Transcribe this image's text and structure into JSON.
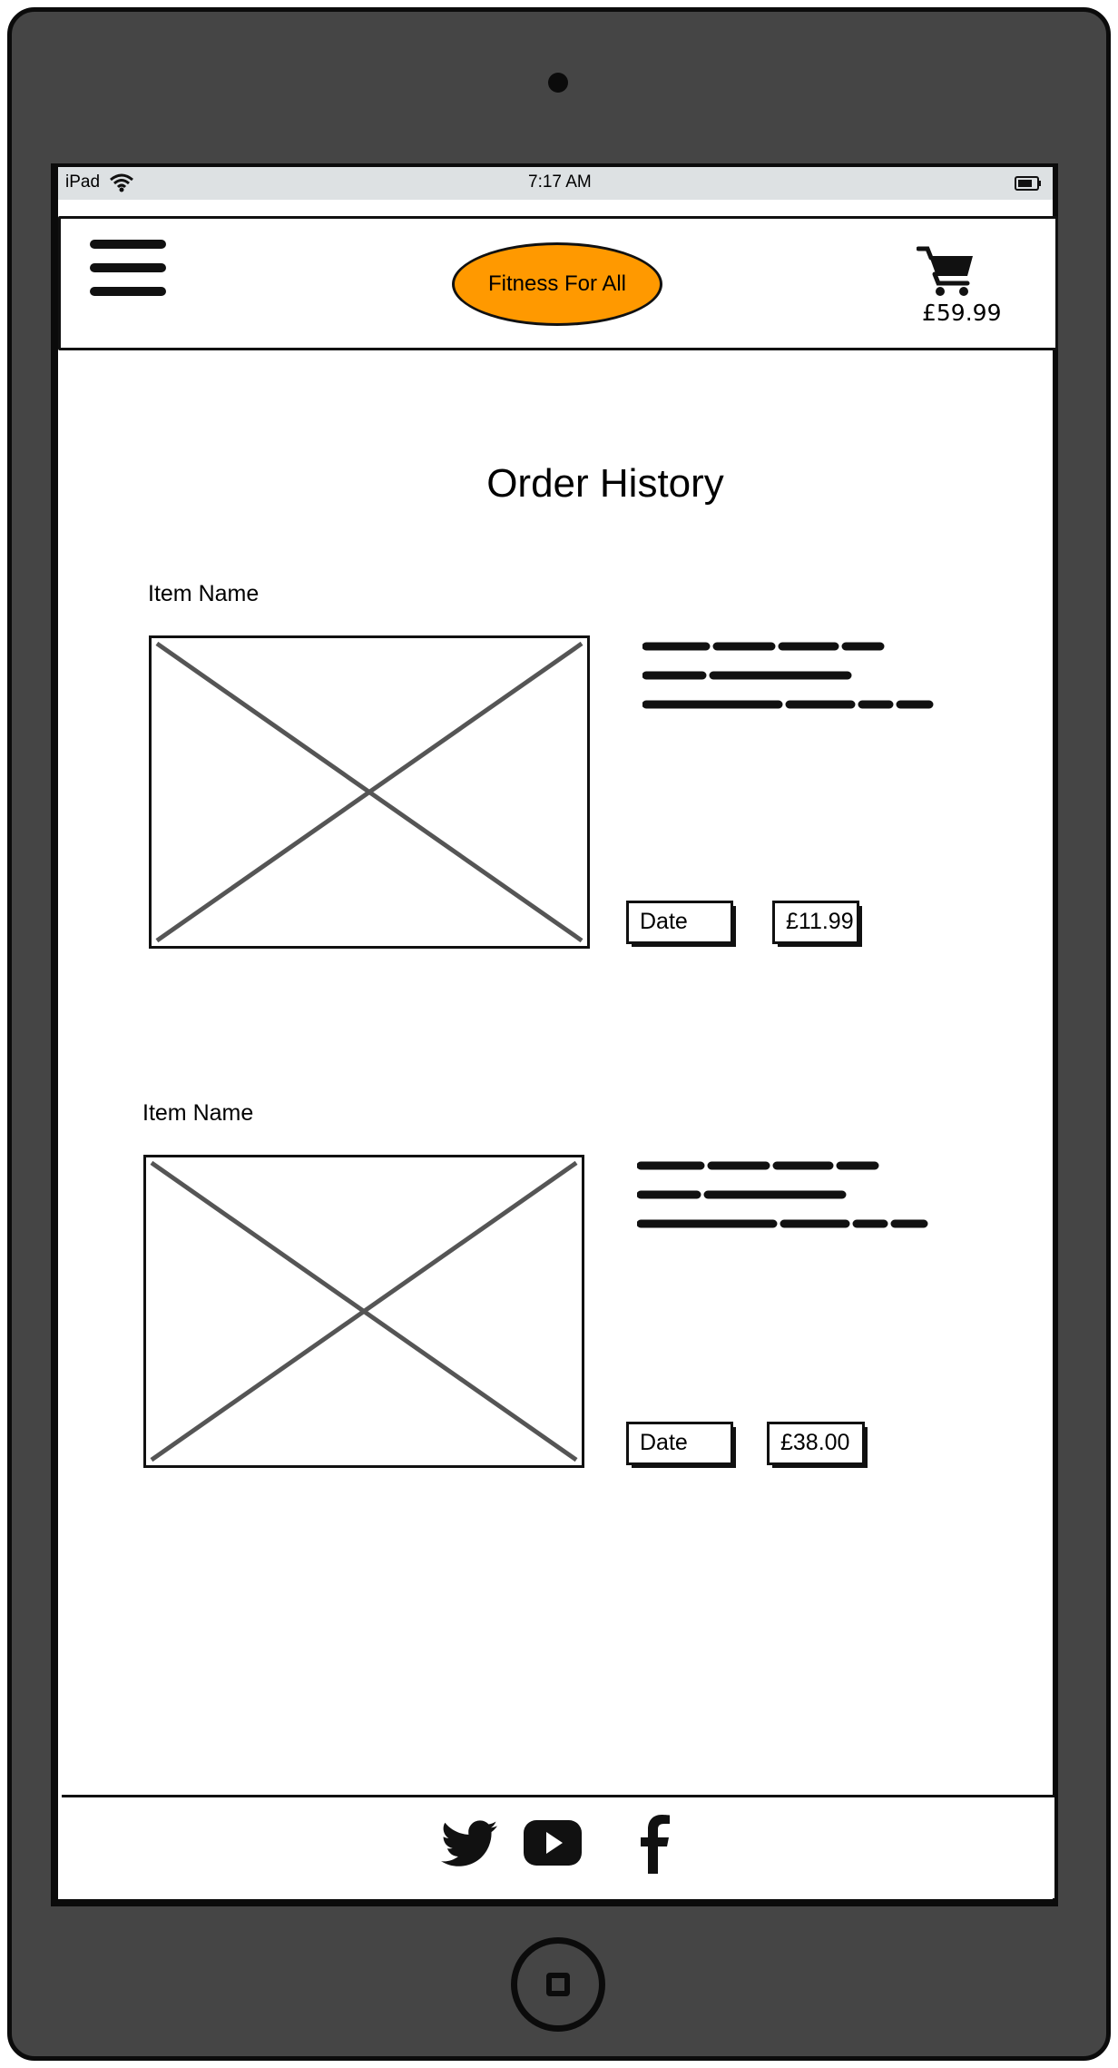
{
  "status_bar": {
    "device": "iPad",
    "time": "7:17 AM"
  },
  "header": {
    "brand": "Fitness For All",
    "cart_total": "£59.99",
    "icons": [
      "hamburger-menu-icon",
      "shopping-cart-icon"
    ]
  },
  "page": {
    "title": "Order History"
  },
  "orders": [
    {
      "item_name": "Item Name",
      "date_label": "Date",
      "price": "£11.99"
    },
    {
      "item_name": "Item Name",
      "date_label": "Date",
      "price": "£38.00"
    }
  ],
  "footer": {
    "social_icons": [
      "twitter-icon",
      "youtube-icon",
      "facebook-icon"
    ]
  },
  "colors": {
    "accent": "#ff9900",
    "device_frame": "#454545",
    "status_bar": "#dde1e3"
  }
}
